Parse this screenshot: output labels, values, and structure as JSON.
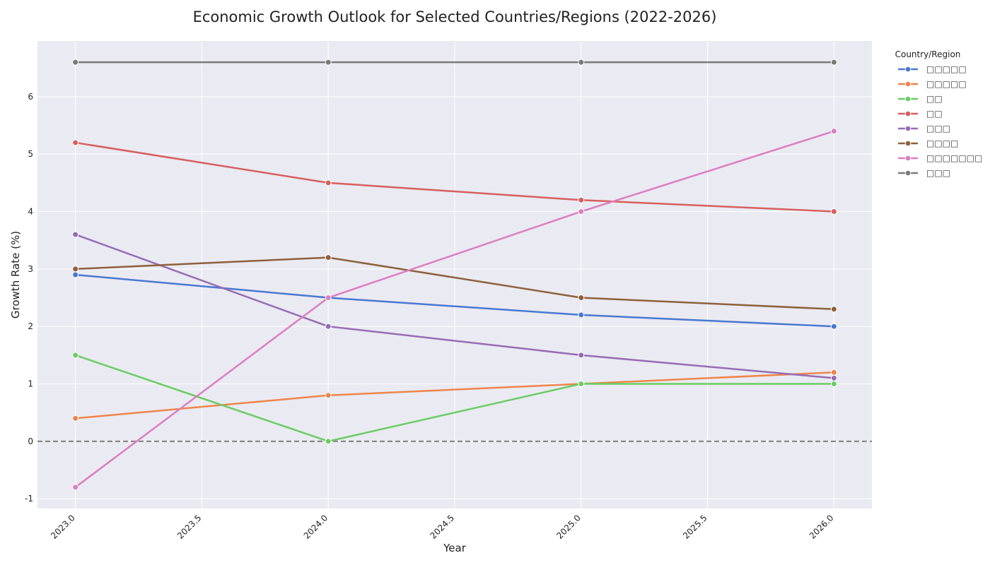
{
  "chart_data": {
    "type": "line",
    "title": "Economic Growth Outlook for Selected Countries/Regions (2022-2026)",
    "xlabel": "Year",
    "ylabel": "Growth Rate (%)",
    "x": [
      2023,
      2024,
      2025,
      2026
    ],
    "xlim": [
      2022.85,
      2026.15
    ],
    "ylim": [
      -1.17,
      6.97
    ],
    "x_ticks": [
      2023.0,
      2023.5,
      2024.0,
      2024.5,
      2025.0,
      2025.5,
      2026.0
    ],
    "x_tick_labels": [
      "2023.0",
      "2023.5",
      "2024.0",
      "2024.5",
      "2025.0",
      "2025.5",
      "2026.0"
    ],
    "y_ticks": [
      -1,
      0,
      1,
      2,
      3,
      4,
      5,
      6
    ],
    "y_tick_labels": [
      "-1",
      "0",
      "1",
      "2",
      "3",
      "4",
      "5",
      "6"
    ],
    "grid": true,
    "reference_line": {
      "y": 0,
      "style": "dashed",
      "color": "#808080"
    },
    "legend": {
      "title": "Country/Region",
      "placement": "outside-top-right"
    },
    "series": [
      {
        "name": "□□□□□",
        "color": "#4878d0",
        "values": [
          2.9,
          2.5,
          2.2,
          2.0
        ]
      },
      {
        "name": "□□□□□",
        "color": "#ee854a",
        "values": [
          0.4,
          0.8,
          1.0,
          1.2
        ]
      },
      {
        "name": "□□",
        "color": "#6acc64",
        "values": [
          1.5,
          0.0,
          1.0,
          1.0
        ]
      },
      {
        "name": "□□",
        "color": "#d65f5f",
        "values": [
          5.2,
          4.5,
          4.2,
          4.0
        ]
      },
      {
        "name": "□□□",
        "color": "#956cb4",
        "values": [
          3.6,
          2.0,
          1.5,
          1.1
        ]
      },
      {
        "name": "□□□□",
        "color": "#8c613c",
        "values": [
          3.0,
          3.2,
          2.5,
          2.3
        ]
      },
      {
        "name": "□□□□□□□",
        "color": "#dc7ec0",
        "values": [
          -0.8,
          2.5,
          4.0,
          5.4
        ]
      },
      {
        "name": "□□□",
        "color": "#797979",
        "values": [
          6.6,
          6.6,
          6.6,
          6.6
        ]
      }
    ]
  }
}
